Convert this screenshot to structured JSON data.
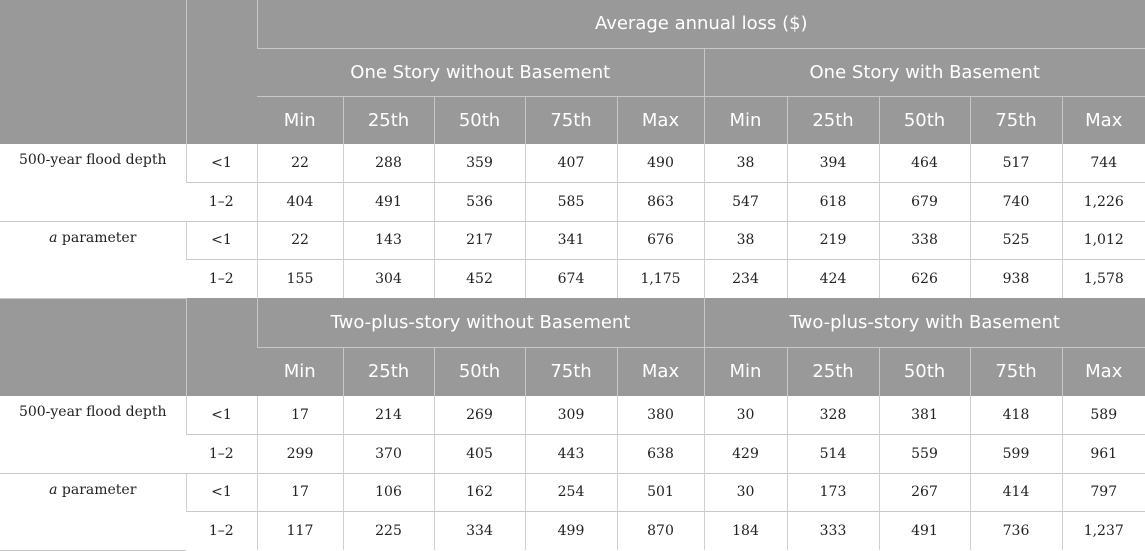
{
  "header": {
    "title": "Average annual loss ($)",
    "columns": [
      "Min",
      "25th",
      "50th",
      "75th",
      "Max"
    ]
  },
  "sections": [
    {
      "group_left": "One Story without Basement",
      "group_right": "One Story with Basement",
      "rows": [
        {
          "label": "500-year flood depth",
          "depth": "<1",
          "left": [
            "22",
            "288",
            "359",
            "407",
            "490"
          ],
          "right": [
            "38",
            "394",
            "464",
            "517",
            "744"
          ]
        },
        {
          "label": "",
          "depth": "1–2",
          "left": [
            "404",
            "491",
            "536",
            "585",
            "863"
          ],
          "right": [
            "547",
            "618",
            "679",
            "740",
            "1,226"
          ]
        },
        {
          "label_italic": "a",
          "label_rest": " parameter",
          "depth": "<1",
          "left": [
            "22",
            "143",
            "217",
            "341",
            "676"
          ],
          "right": [
            "38",
            "219",
            "338",
            "525",
            "1,012"
          ]
        },
        {
          "label": "",
          "depth": "1–2",
          "left": [
            "155",
            "304",
            "452",
            "674",
            "1,175"
          ],
          "right": [
            "234",
            "424",
            "626",
            "938",
            "1,578"
          ]
        }
      ]
    },
    {
      "group_left": "Two-plus-story without Basement",
      "group_right": "Two-plus-story with Basement",
      "rows": [
        {
          "label": "500-year flood depth",
          "depth": "<1",
          "left": [
            "17",
            "214",
            "269",
            "309",
            "380"
          ],
          "right": [
            "30",
            "328",
            "381",
            "418",
            "589"
          ]
        },
        {
          "label": "",
          "depth": "1–2",
          "left": [
            "299",
            "370",
            "405",
            "443",
            "638"
          ],
          "right": [
            "429",
            "514",
            "559",
            "599",
            "961"
          ]
        },
        {
          "label_italic": "a",
          "label_rest": " parameter",
          "depth": "<1",
          "left": [
            "17",
            "106",
            "162",
            "254",
            "501"
          ],
          "right": [
            "30",
            "173",
            "267",
            "414",
            "797"
          ]
        },
        {
          "label": "",
          "depth": "1–2",
          "left": [
            "117",
            "225",
            "334",
            "499",
            "870"
          ],
          "right": [
            "184",
            "333",
            "491",
            "736",
            "1,237"
          ]
        }
      ]
    }
  ]
}
